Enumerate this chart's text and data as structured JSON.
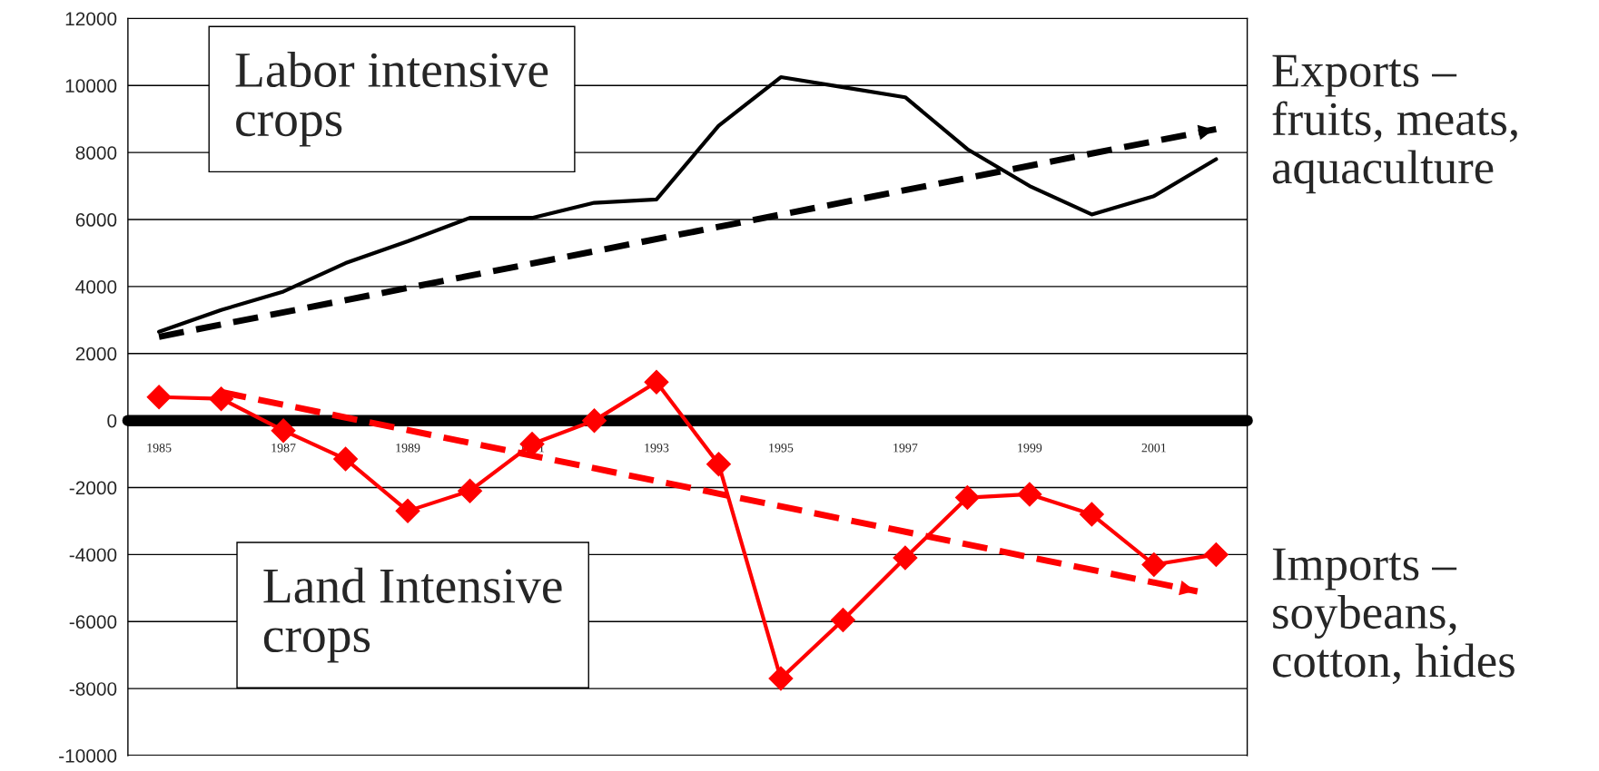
{
  "chart_data": {
    "type": "line",
    "x": [
      1985,
      1986,
      1987,
      1988,
      1989,
      1990,
      1991,
      1992,
      1993,
      1994,
      1995,
      1996,
      1997,
      1998,
      1999,
      2000,
      2001,
      2002
    ],
    "series": [
      {
        "name": "Exports –\nfruits, meats,\naquaculture",
        "color": "#000000",
        "marker": "none",
        "line_style": "solid",
        "values": [
          2650,
          3300,
          3850,
          4700,
          5350,
          6050,
          6050,
          6500,
          6600,
          8800,
          10250,
          9950,
          9650,
          8100,
          7000,
          6150,
          6700,
          7800
        ]
      },
      {
        "name": "Imports –\nsoybeans,\ncotton, hides",
        "color": "#ff0000",
        "marker": "diamond",
        "line_style": "solid",
        "values": [
          700,
          650,
          -300,
          -1150,
          -2700,
          -2100,
          -700,
          0,
          1150,
          -1300,
          -7700,
          -5950,
          -4100,
          -2300,
          -2200,
          -2800,
          -4300,
          -4000
        ]
      },
      {
        "type": "line",
        "color": "#000000",
        "line_style": "dashed",
        "marker": "none",
        "x": [
          1985,
          2002
        ],
        "values": [
          2500,
          8700
        ]
      },
      {
        "type": "line",
        "color": "#ff0000",
        "line_style": "dashed",
        "marker": "none",
        "x": [
          1986,
          2001.7
        ],
        "values": [
          850,
          -5100
        ]
      }
    ],
    "xlim": [
      1984.5,
      2002.5
    ],
    "xticks": [
      1985,
      1987,
      1989,
      1991,
      1993,
      1995,
      1997,
      1999,
      2001
    ],
    "legend": "right",
    "ylim": [
      -10000,
      12000
    ],
    "yticks": [
      -10000,
      -8000,
      -6000,
      -4000,
      -2000,
      0,
      2000,
      4000,
      6000,
      8000,
      10000,
      12000
    ],
    "grid": "y",
    "annotations": [
      "Labor intensive\ncrops",
      "Land Intensive\ncrops"
    ]
  }
}
